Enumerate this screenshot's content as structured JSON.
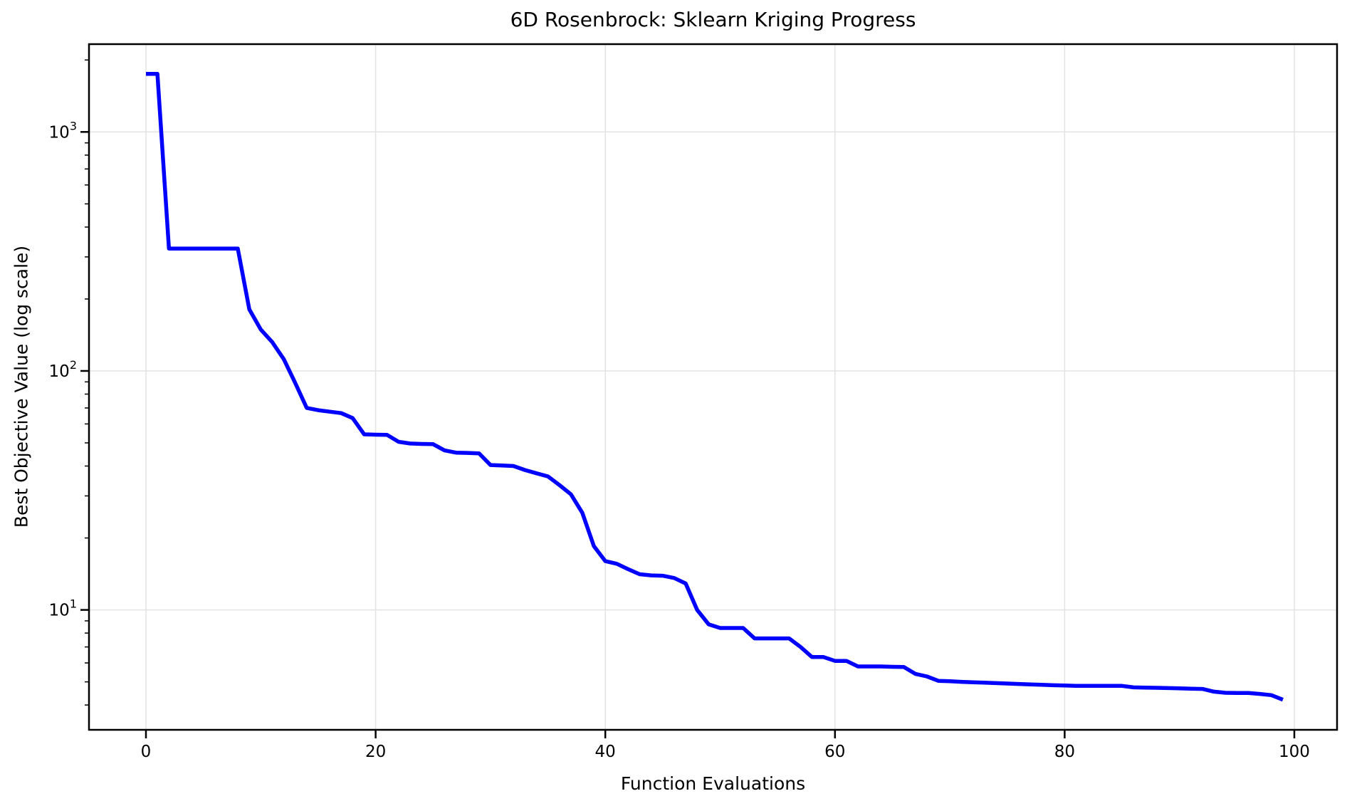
{
  "figure": {
    "background": "#ffffff",
    "text_color": "#000000",
    "grid_color": "#e3e3e3"
  },
  "chart_data": {
    "type": "line",
    "title": "6D Rosenbrock: Sklearn Kriging Progress",
    "xlabel": "Function Evaluations",
    "ylabel": "Best Objective Value (log scale)",
    "grid": true,
    "legend": false,
    "x_axis": {
      "lim": [
        -4.96,
        103.72
      ],
      "ticks": [
        0,
        20,
        40,
        60,
        80,
        100
      ]
    },
    "y_axis": {
      "scale": "log",
      "lim": [
        3.15,
        2330
      ],
      "ticks": [
        {
          "value": 10,
          "base": "10",
          "exp": "1"
        },
        {
          "value": 100,
          "base": "10",
          "exp": "2"
        },
        {
          "value": 1000,
          "base": "10",
          "exp": "3"
        }
      ]
    },
    "series": [
      {
        "name": "best_objective_value",
        "color": "#0000ff",
        "x0": 0,
        "dx": 1,
        "values": [
          1750,
          1750,
          325,
          325,
          325,
          325,
          325,
          325,
          325,
          181,
          149,
          132,
          112,
          89,
          70,
          68.5,
          67.5,
          66.6,
          63.5,
          54.3,
          54.1,
          54.0,
          50.5,
          49.7,
          49.5,
          49.4,
          46.5,
          45.5,
          45.4,
          45.2,
          40.4,
          40.2,
          40.0,
          38.5,
          37.3,
          36.2,
          33.3,
          30.5,
          25.5,
          18.5,
          16.0,
          15.6,
          14.8,
          14.1,
          13.95,
          13.9,
          13.6,
          12.9,
          10.0,
          8.7,
          8.4,
          8.4,
          8.4,
          7.6,
          7.6,
          7.6,
          7.6,
          7.0,
          6.35,
          6.35,
          6.12,
          6.12,
          5.8,
          5.8,
          5.8,
          5.78,
          5.77,
          5.4,
          5.27,
          5.05,
          5.03,
          5.0,
          4.98,
          4.96,
          4.94,
          4.92,
          4.9,
          4.88,
          4.86,
          4.84,
          4.83,
          4.81,
          4.81,
          4.81,
          4.81,
          4.81,
          4.74,
          4.73,
          4.72,
          4.71,
          4.7,
          4.68,
          4.67,
          4.55,
          4.5,
          4.49,
          4.49,
          4.45,
          4.4,
          4.21
        ]
      }
    ]
  }
}
